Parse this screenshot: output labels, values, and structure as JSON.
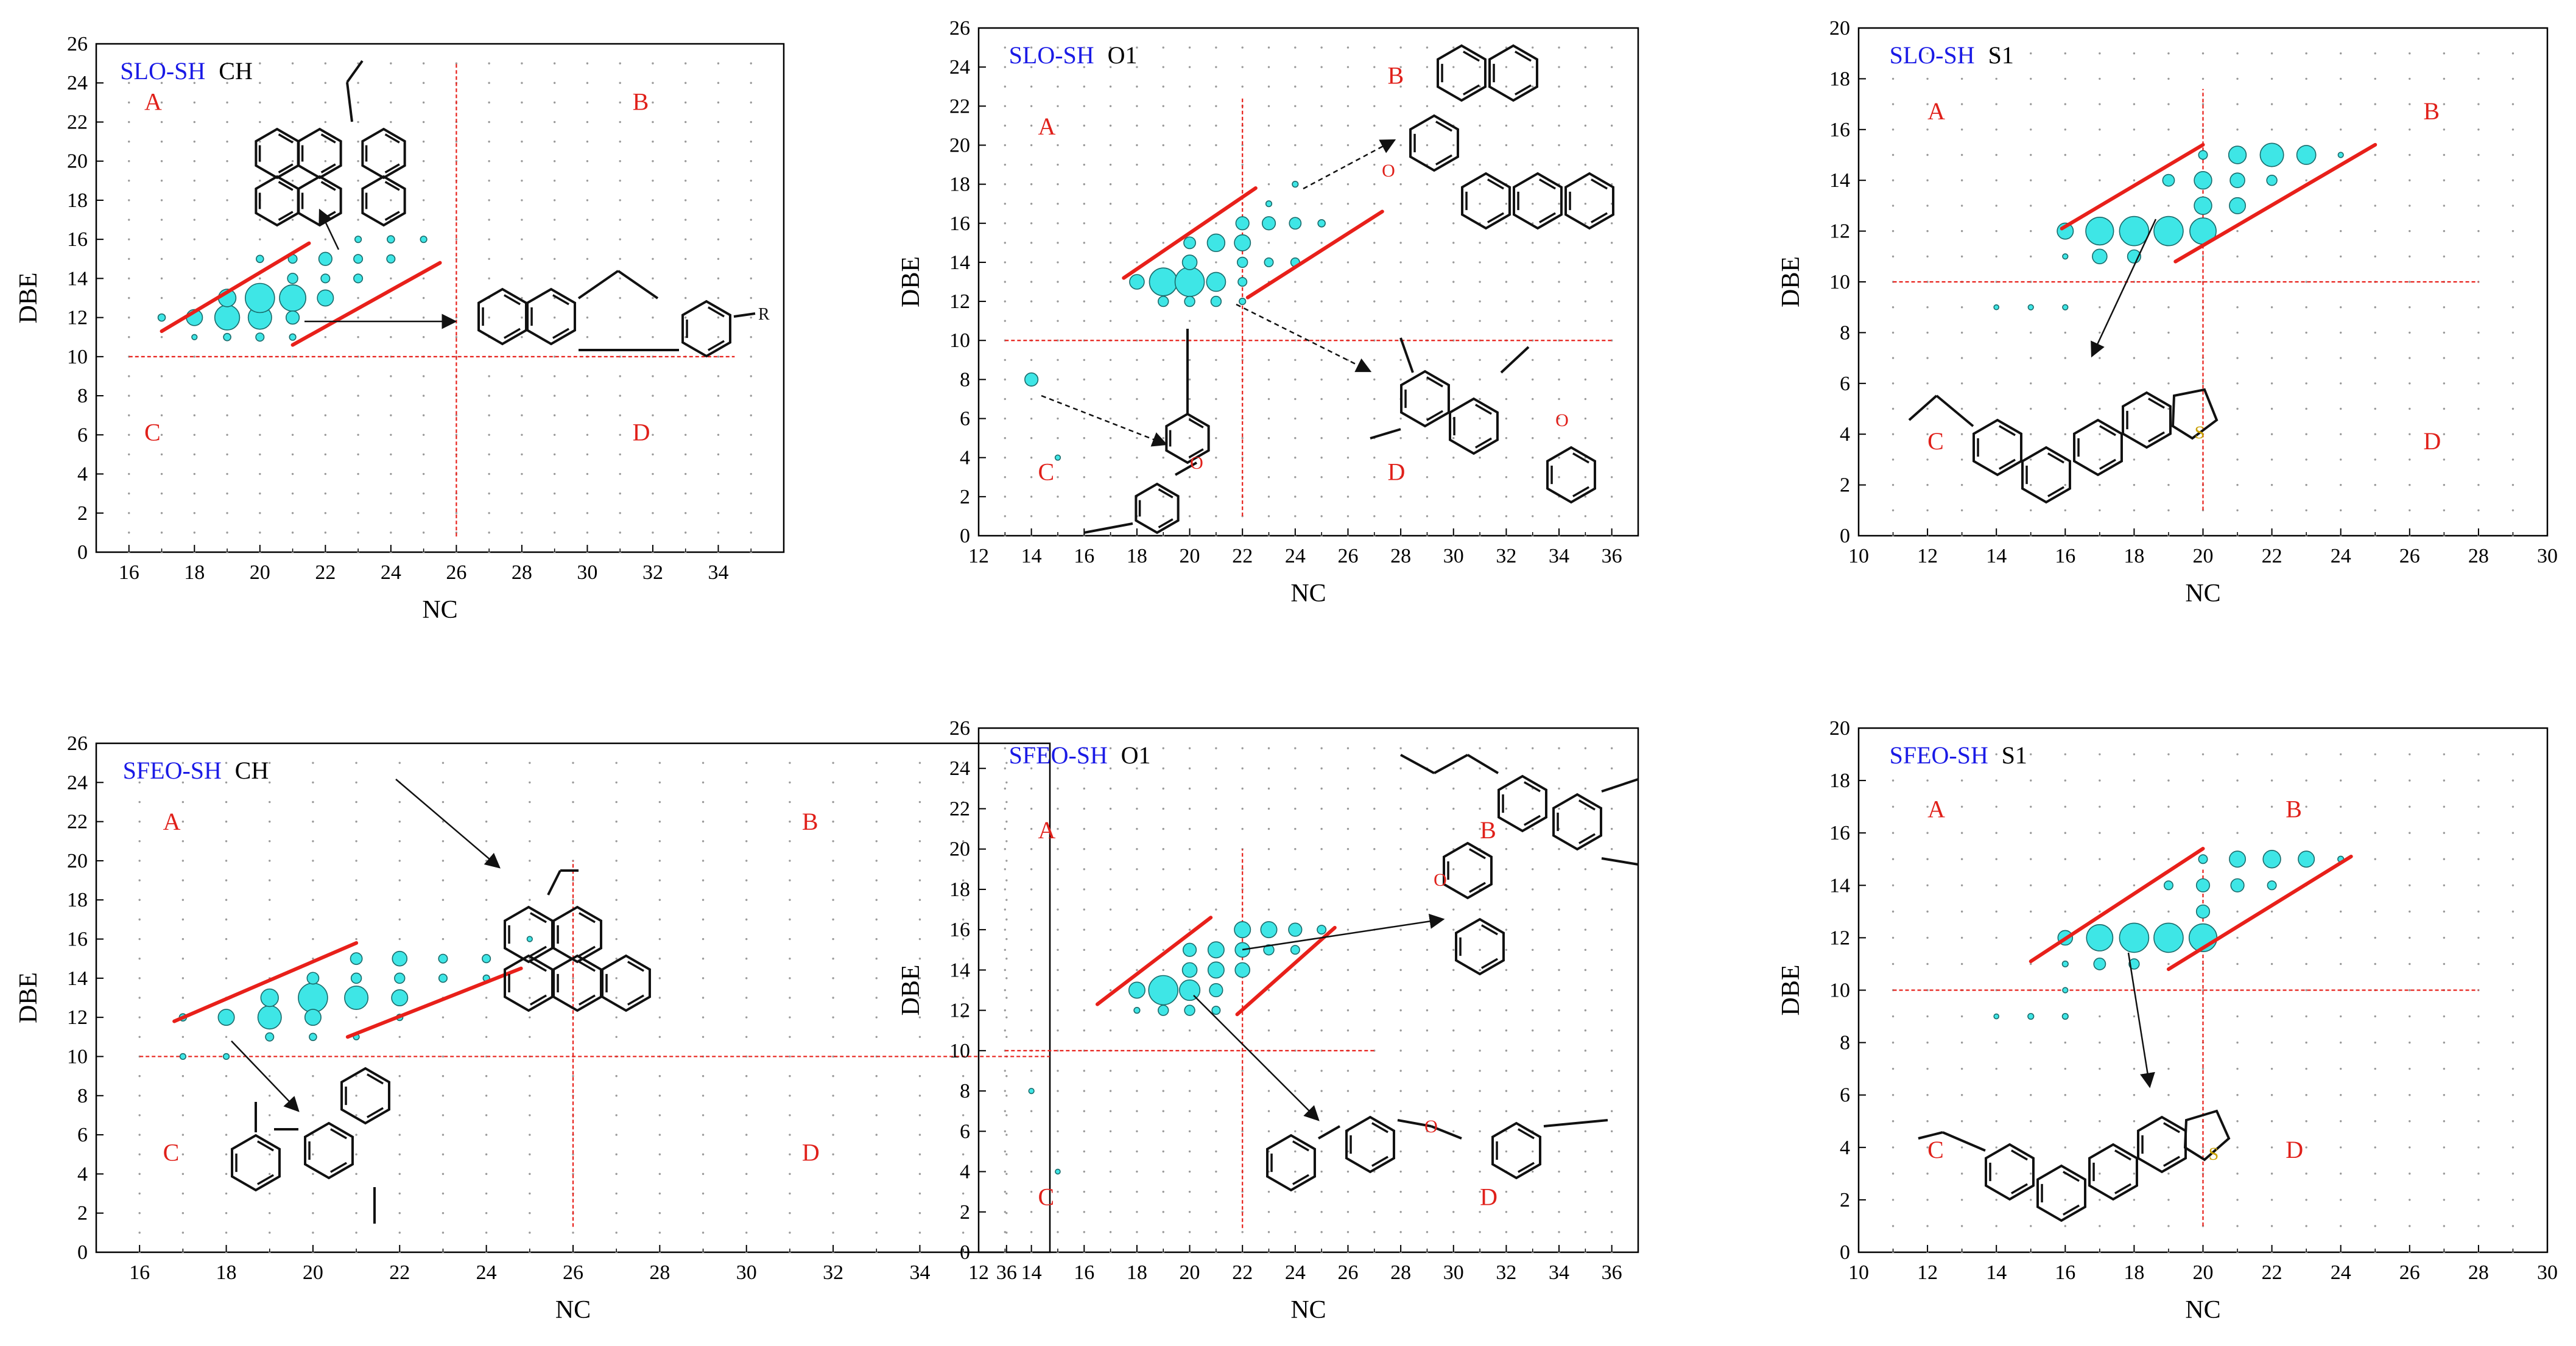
{
  "colors": {
    "axis": "#000000",
    "bubble_fill": "#3ee6e6",
    "bubble_stroke": "#1a6b6b",
    "dot": "#555555",
    "guide": "#e8201a",
    "title_sample": "#1a1ae6",
    "region_label": "#e0201a",
    "structure": "#111111",
    "heteroatom_O": "#e0201a",
    "heteroatom_S": "#c8a000"
  },
  "chart_data": [
    {
      "type": "scatter",
      "sample": "SLO-SH",
      "fraction": "CH",
      "xlabel": "NC",
      "ylabel": "DBE",
      "xlim": [
        15,
        36
      ],
      "ylim": [
        0,
        26
      ],
      "xticks": [
        16,
        18,
        20,
        22,
        24,
        26,
        28,
        30,
        32,
        34
      ],
      "yticks": [
        0,
        2,
        4,
        6,
        8,
        10,
        12,
        14,
        16,
        18,
        20,
        22,
        24,
        26
      ],
      "regions": [
        "A",
        "B",
        "C",
        "D"
      ],
      "vline_nc": 26,
      "hline_dbe": 10,
      "bubbles": [
        {
          "x": 17,
          "y": 12,
          "s": 0.25
        },
        {
          "x": 18,
          "y": 12,
          "s": 0.55
        },
        {
          "x": 19,
          "y": 12,
          "s": 0.85
        },
        {
          "x": 19,
          "y": 13,
          "s": 0.6
        },
        {
          "x": 20,
          "y": 12,
          "s": 0.8
        },
        {
          "x": 20,
          "y": 13,
          "s": 1.0
        },
        {
          "x": 21,
          "y": 13,
          "s": 0.9
        },
        {
          "x": 21,
          "y": 12,
          "s": 0.45
        },
        {
          "x": 22,
          "y": 13,
          "s": 0.55
        },
        {
          "x": 22,
          "y": 15,
          "s": 0.45
        },
        {
          "x": 21,
          "y": 14,
          "s": 0.35
        },
        {
          "x": 22,
          "y": 14,
          "s": 0.3
        },
        {
          "x": 23,
          "y": 14,
          "s": 0.3
        },
        {
          "x": 23,
          "y": 15,
          "s": 0.3
        },
        {
          "x": 24,
          "y": 15,
          "s": 0.28
        },
        {
          "x": 24,
          "y": 16,
          "s": 0.25
        },
        {
          "x": 25,
          "y": 16,
          "s": 0.22
        },
        {
          "x": 23,
          "y": 16,
          "s": 0.22
        },
        {
          "x": 20,
          "y": 15,
          "s": 0.25
        },
        {
          "x": 21,
          "y": 15,
          "s": 0.3
        },
        {
          "x": 19,
          "y": 11,
          "s": 0.25
        },
        {
          "x": 20,
          "y": 11,
          "s": 0.28
        },
        {
          "x": 21,
          "y": 11,
          "s": 0.22
        },
        {
          "x": 18,
          "y": 11,
          "s": 0.18
        }
      ],
      "dots_region": {
        "x_from": 16,
        "x_to": 35,
        "y_from": 0,
        "y_to": 25
      }
    },
    {
      "type": "scatter",
      "sample": "SLO-SH",
      "fraction": "O1",
      "xlabel": "NC",
      "ylabel": "DBE",
      "xlim": [
        12,
        37
      ],
      "ylim": [
        0,
        26
      ],
      "xticks": [
        12,
        14,
        16,
        18,
        20,
        22,
        24,
        26,
        28,
        30,
        32,
        34,
        36
      ],
      "yticks": [
        0,
        2,
        4,
        6,
        8,
        10,
        12,
        14,
        16,
        18,
        20,
        22,
        24,
        26
      ],
      "regions": [
        "A",
        "B",
        "C",
        "D"
      ],
      "vline_nc": 22,
      "hline_dbe": 10,
      "bubbles": [
        {
          "x": 14,
          "y": 8,
          "s": 0.45
        },
        {
          "x": 18,
          "y": 13,
          "s": 0.5
        },
        {
          "x": 19,
          "y": 13,
          "s": 0.95
        },
        {
          "x": 20,
          "y": 13,
          "s": 1.0
        },
        {
          "x": 21,
          "y": 13,
          "s": 0.65
        },
        {
          "x": 19,
          "y": 12,
          "s": 0.35
        },
        {
          "x": 20,
          "y": 12,
          "s": 0.35
        },
        {
          "x": 21,
          "y": 12,
          "s": 0.35
        },
        {
          "x": 20,
          "y": 14,
          "s": 0.5
        },
        {
          "x": 20,
          "y": 15,
          "s": 0.4
        },
        {
          "x": 21,
          "y": 15,
          "s": 0.6
        },
        {
          "x": 22,
          "y": 15,
          "s": 0.55
        },
        {
          "x": 22,
          "y": 16,
          "s": 0.45
        },
        {
          "x": 23,
          "y": 16,
          "s": 0.45
        },
        {
          "x": 24,
          "y": 16,
          "s": 0.4
        },
        {
          "x": 22,
          "y": 14,
          "s": 0.35
        },
        {
          "x": 23,
          "y": 14,
          "s": 0.3
        },
        {
          "x": 24,
          "y": 14,
          "s": 0.3
        },
        {
          "x": 22,
          "y": 13,
          "s": 0.3
        },
        {
          "x": 25,
          "y": 16,
          "s": 0.25
        },
        {
          "x": 24,
          "y": 18,
          "s": 0.2
        },
        {
          "x": 23,
          "y": 17,
          "s": 0.2
        },
        {
          "x": 22,
          "y": 12,
          "s": 0.22
        },
        {
          "x": 15,
          "y": 4,
          "s": 0.18
        }
      ],
      "dots_region": {
        "x_from": 13,
        "x_to": 36,
        "y_from": 0,
        "y_to": 25
      }
    },
    {
      "type": "scatter",
      "sample": "SLO-SH",
      "fraction": "S1",
      "xlabel": "NC",
      "ylabel": "DBE",
      "xlim": [
        10,
        30
      ],
      "ylim": [
        0,
        20
      ],
      "xticks": [
        10,
        12,
        14,
        16,
        18,
        20,
        22,
        24,
        26,
        28,
        30
      ],
      "yticks": [
        0,
        2,
        4,
        6,
        8,
        10,
        12,
        14,
        16,
        18,
        20
      ],
      "regions": [
        "A",
        "B",
        "C",
        "D"
      ],
      "vline_nc": 20,
      "hline_dbe": 10,
      "bubbles": [
        {
          "x": 16,
          "y": 12,
          "s": 0.55
        },
        {
          "x": 17,
          "y": 12,
          "s": 0.95
        },
        {
          "x": 18,
          "y": 12,
          "s": 1.0
        },
        {
          "x": 19,
          "y": 12,
          "s": 1.0
        },
        {
          "x": 20,
          "y": 12,
          "s": 0.9
        },
        {
          "x": 17,
          "y": 11,
          "s": 0.5
        },
        {
          "x": 18,
          "y": 11,
          "s": 0.45
        },
        {
          "x": 20,
          "y": 13,
          "s": 0.6
        },
        {
          "x": 20,
          "y": 14,
          "s": 0.6
        },
        {
          "x": 21,
          "y": 14,
          "s": 0.5
        },
        {
          "x": 21,
          "y": 15,
          "s": 0.6
        },
        {
          "x": 22,
          "y": 15,
          "s": 0.8
        },
        {
          "x": 23,
          "y": 15,
          "s": 0.65
        },
        {
          "x": 21,
          "y": 13,
          "s": 0.55
        },
        {
          "x": 19,
          "y": 14,
          "s": 0.4
        },
        {
          "x": 20,
          "y": 15,
          "s": 0.3
        },
        {
          "x": 22,
          "y": 14,
          "s": 0.35
        },
        {
          "x": 16,
          "y": 11,
          "s": 0.18
        },
        {
          "x": 15,
          "y": 9,
          "s": 0.18
        },
        {
          "x": 16,
          "y": 9,
          "s": 0.18
        },
        {
          "x": 14,
          "y": 9,
          "s": 0.14
        },
        {
          "x": 24,
          "y": 15,
          "s": 0.18
        }
      ],
      "dots_region": {
        "x_from": 11,
        "x_to": 29,
        "y_from": 0,
        "y_to": 19
      }
    },
    {
      "type": "scatter",
      "sample": "SFEO-SH",
      "fraction": "CH",
      "xlabel": "NC",
      "ylabel": "DBE",
      "xlim": [
        15,
        37
      ],
      "ylim": [
        0,
        26
      ],
      "xticks": [
        16,
        18,
        20,
        22,
        24,
        26,
        28,
        30,
        32,
        34,
        36
      ],
      "yticks": [
        0,
        2,
        4,
        6,
        8,
        10,
        12,
        14,
        16,
        18,
        20,
        22,
        24,
        26
      ],
      "regions": [
        "A",
        "B",
        "C",
        "D"
      ],
      "vline_nc": 26,
      "hline_dbe": 10,
      "bubbles": [
        {
          "x": 17,
          "y": 12,
          "s": 0.25
        },
        {
          "x": 18,
          "y": 12,
          "s": 0.55
        },
        {
          "x": 19,
          "y": 12,
          "s": 0.8
        },
        {
          "x": 19,
          "y": 13,
          "s": 0.6
        },
        {
          "x": 20,
          "y": 13,
          "s": 1.0
        },
        {
          "x": 20,
          "y": 12,
          "s": 0.55
        },
        {
          "x": 21,
          "y": 13,
          "s": 0.8
        },
        {
          "x": 22,
          "y": 13,
          "s": 0.55
        },
        {
          "x": 22,
          "y": 15,
          "s": 0.5
        },
        {
          "x": 21,
          "y": 15,
          "s": 0.4
        },
        {
          "x": 20,
          "y": 14,
          "s": 0.4
        },
        {
          "x": 21,
          "y": 14,
          "s": 0.35
        },
        {
          "x": 22,
          "y": 14,
          "s": 0.35
        },
        {
          "x": 23,
          "y": 15,
          "s": 0.3
        },
        {
          "x": 24,
          "y": 15,
          "s": 0.28
        },
        {
          "x": 23,
          "y": 14,
          "s": 0.28
        },
        {
          "x": 19,
          "y": 11,
          "s": 0.28
        },
        {
          "x": 20,
          "y": 11,
          "s": 0.25
        },
        {
          "x": 17,
          "y": 10,
          "s": 0.2
        },
        {
          "x": 18,
          "y": 10,
          "s": 0.2
        },
        {
          "x": 25,
          "y": 16,
          "s": 0.18
        },
        {
          "x": 24,
          "y": 14,
          "s": 0.22
        },
        {
          "x": 21,
          "y": 11,
          "s": 0.2
        },
        {
          "x": 22,
          "y": 12,
          "s": 0.22
        }
      ],
      "dots_region": {
        "x_from": 16,
        "x_to": 36,
        "y_from": 0,
        "y_to": 25
      }
    },
    {
      "type": "scatter",
      "sample": "SFEO-SH",
      "fraction": "O1",
      "xlabel": "NC",
      "ylabel": "DBE",
      "xlim": [
        12,
        37
      ],
      "ylim": [
        0,
        26
      ],
      "xticks": [
        12,
        14,
        16,
        18,
        20,
        22,
        24,
        26,
        28,
        30,
        32,
        34,
        36
      ],
      "yticks": [
        0,
        2,
        4,
        6,
        8,
        10,
        12,
        14,
        16,
        18,
        20,
        22,
        24,
        26
      ],
      "regions": [
        "A",
        "B",
        "C",
        "D"
      ],
      "vline_nc": 22,
      "hline_dbe": 10,
      "bubbles": [
        {
          "x": 18,
          "y": 13,
          "s": 0.55
        },
        {
          "x": 19,
          "y": 13,
          "s": 1.0
        },
        {
          "x": 20,
          "y": 13,
          "s": 0.7
        },
        {
          "x": 19,
          "y": 12,
          "s": 0.35
        },
        {
          "x": 20,
          "y": 12,
          "s": 0.35
        },
        {
          "x": 21,
          "y": 13,
          "s": 0.45
        },
        {
          "x": 20,
          "y": 14,
          "s": 0.5
        },
        {
          "x": 21,
          "y": 14,
          "s": 0.55
        },
        {
          "x": 22,
          "y": 14,
          "s": 0.5
        },
        {
          "x": 20,
          "y": 15,
          "s": 0.45
        },
        {
          "x": 21,
          "y": 15,
          "s": 0.55
        },
        {
          "x": 22,
          "y": 15,
          "s": 0.5
        },
        {
          "x": 22,
          "y": 16,
          "s": 0.55
        },
        {
          "x": 23,
          "y": 16,
          "s": 0.55
        },
        {
          "x": 24,
          "y": 16,
          "s": 0.45
        },
        {
          "x": 23,
          "y": 15,
          "s": 0.35
        },
        {
          "x": 24,
          "y": 15,
          "s": 0.3
        },
        {
          "x": 25,
          "y": 16,
          "s": 0.3
        },
        {
          "x": 21,
          "y": 12,
          "s": 0.28
        },
        {
          "x": 14,
          "y": 8,
          "s": 0.18
        },
        {
          "x": 15,
          "y": 4,
          "s": 0.15
        },
        {
          "x": 18,
          "y": 12,
          "s": 0.2
        }
      ],
      "dots_region": {
        "x_from": 13,
        "x_to": 36,
        "y_from": 0,
        "y_to": 25
      }
    },
    {
      "type": "scatter",
      "sample": "SFEO-SH",
      "fraction": "S1",
      "xlabel": "NC",
      "ylabel": "DBE",
      "xlim": [
        10,
        30
      ],
      "ylim": [
        0,
        20
      ],
      "xticks": [
        10,
        12,
        14,
        16,
        18,
        20,
        22,
        24,
        26,
        28,
        30
      ],
      "yticks": [
        0,
        2,
        4,
        6,
        8,
        10,
        12,
        14,
        16,
        18,
        20
      ],
      "regions": [
        "A",
        "B",
        "C",
        "D"
      ],
      "vline_nc": 20,
      "hline_dbe": 10,
      "bubbles": [
        {
          "x": 16,
          "y": 12,
          "s": 0.5
        },
        {
          "x": 17,
          "y": 12,
          "s": 0.9
        },
        {
          "x": 18,
          "y": 12,
          "s": 1.0
        },
        {
          "x": 19,
          "y": 12,
          "s": 1.0
        },
        {
          "x": 20,
          "y": 12,
          "s": 0.95
        },
        {
          "x": 17,
          "y": 11,
          "s": 0.4
        },
        {
          "x": 18,
          "y": 11,
          "s": 0.35
        },
        {
          "x": 20,
          "y": 13,
          "s": 0.45
        },
        {
          "x": 20,
          "y": 14,
          "s": 0.45
        },
        {
          "x": 21,
          "y": 14,
          "s": 0.45
        },
        {
          "x": 21,
          "y": 15,
          "s": 0.55
        },
        {
          "x": 22,
          "y": 15,
          "s": 0.6
        },
        {
          "x": 23,
          "y": 15,
          "s": 0.55
        },
        {
          "x": 22,
          "y": 14,
          "s": 0.3
        },
        {
          "x": 20,
          "y": 15,
          "s": 0.3
        },
        {
          "x": 16,
          "y": 11,
          "s": 0.2
        },
        {
          "x": 15,
          "y": 9,
          "s": 0.2
        },
        {
          "x": 16,
          "y": 9,
          "s": 0.2
        },
        {
          "x": 14,
          "y": 9,
          "s": 0.14
        },
        {
          "x": 16,
          "y": 10,
          "s": 0.18
        },
        {
          "x": 24,
          "y": 15,
          "s": 0.2
        },
        {
          "x": 19,
          "y": 14,
          "s": 0.3
        }
      ],
      "dots_region": {
        "x_from": 11,
        "x_to": 29,
        "y_from": 0,
        "y_to": 19
      }
    }
  ]
}
